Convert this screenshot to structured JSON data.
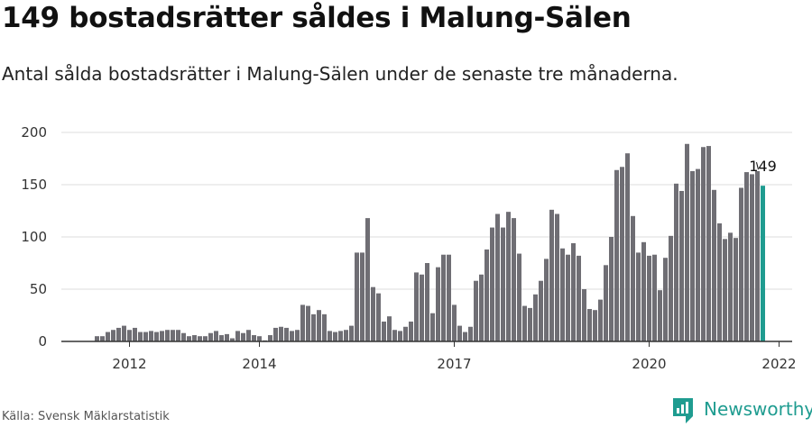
{
  "header": {
    "title": "149 bostadsrätter såldes i Malung-Sälen",
    "subtitle": "Antal sålda bostadsrätter i Malung-Sälen under de senaste tre månaderna."
  },
  "footer": {
    "source": "Källa: Svensk Mäklarstatistik",
    "brand": "Newsworthy",
    "brand_icon": "newsworthy-logo-icon"
  },
  "colors": {
    "bar": "#6f6e74",
    "highlight": "#1f9c90",
    "grid": "#dddddd",
    "axis": "#333333"
  },
  "chart_data": {
    "type": "bar",
    "start": "2011-06",
    "interval": "month",
    "values": [
      5,
      5,
      9,
      11,
      13,
      15,
      11,
      13,
      9,
      9,
      10,
      9,
      10,
      11,
      11,
      11,
      8,
      5,
      6,
      5,
      5,
      8,
      10,
      6,
      7,
      3,
      10,
      8,
      11,
      6,
      5,
      1,
      6,
      13,
      14,
      13,
      10,
      11,
      35,
      34,
      26,
      30,
      26,
      10,
      9,
      10,
      11,
      15,
      85,
      85,
      118,
      52,
      46,
      19,
      24,
      11,
      10,
      14,
      19,
      66,
      64,
      75,
      27,
      71,
      83,
      83,
      35,
      15,
      9,
      14,
      58,
      64,
      88,
      109,
      122,
      109,
      124,
      118,
      84,
      34,
      32,
      45,
      58,
      79,
      126,
      122,
      89,
      83,
      94,
      82,
      50,
      31,
      30,
      40,
      73,
      100,
      164,
      167,
      180,
      120,
      85,
      95,
      82,
      83,
      49,
      80,
      101,
      151,
      144,
      189,
      163,
      165,
      186,
      187,
      145,
      113,
      98,
      104,
      99,
      147,
      162,
      160,
      163,
      149
    ],
    "highlight_last": true,
    "last_label": "149",
    "ylim": [
      0,
      200
    ],
    "yticks": [
      0,
      50,
      100,
      150,
      200
    ],
    "xtick_labels": [
      "2012",
      "2014",
      "2017",
      "2020",
      "2022"
    ],
    "xtick_positions": [
      6,
      30,
      66,
      102,
      126
    ],
    "grid": true,
    "legend": "none",
    "xlabel": "",
    "ylabel": ""
  }
}
